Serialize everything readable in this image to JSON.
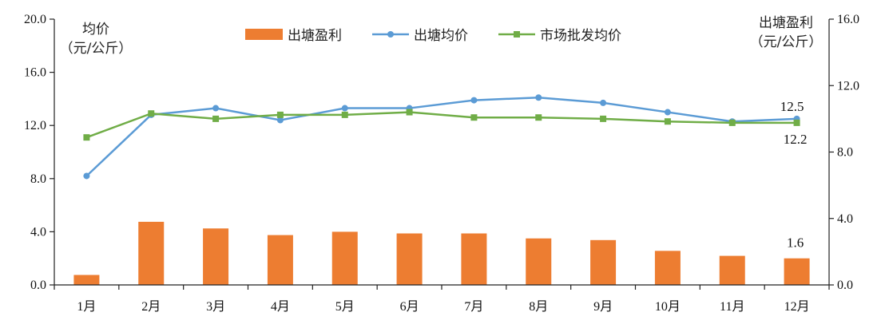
{
  "chart_data": {
    "type": "bar",
    "categories": [
      "1月",
      "2月",
      "3月",
      "4月",
      "5月",
      "6月",
      "7月",
      "8月",
      "9月",
      "10月",
      "11月",
      "12月"
    ],
    "y_left": {
      "unit_line1": "均价",
      "unit_line2": "（元/公斤）",
      "ylim": [
        0,
        20
      ],
      "ticks": [
        "0.0",
        "4.0",
        "8.0",
        "12.0",
        "16.0",
        "20.0"
      ]
    },
    "y_right": {
      "unit_line1": "出塘盈利",
      "unit_line2": "（元/公斤）",
      "ylim": [
        0,
        16
      ],
      "ticks": [
        "0.0",
        "4.0",
        "8.0",
        "12.0",
        "16.0"
      ]
    },
    "series": [
      {
        "name": "出塘盈利",
        "kind": "bar",
        "axis": "right",
        "color": "#ED7D31",
        "values": [
          0.6,
          3.8,
          3.4,
          3.0,
          3.2,
          3.1,
          3.1,
          2.8,
          2.7,
          2.05,
          1.75,
          1.6
        ]
      },
      {
        "name": "出塘均价",
        "kind": "line",
        "axis": "left",
        "color": "#5B9BD5",
        "marker": "circle",
        "values": [
          8.2,
          12.8,
          13.3,
          12.4,
          13.3,
          13.3,
          13.9,
          14.1,
          13.7,
          13.0,
          12.3,
          12.5
        ]
      },
      {
        "name": "市场批发均价",
        "kind": "line",
        "axis": "left",
        "color": "#70AD47",
        "marker": "square",
        "values": [
          11.1,
          12.9,
          12.5,
          12.8,
          12.8,
          13.0,
          12.6,
          12.6,
          12.5,
          12.3,
          12.2,
          12.2
        ]
      }
    ],
    "data_labels": {
      "avg_price_last": "12.5",
      "wholesale_last": "12.2",
      "profit_last": "1.6"
    },
    "legend": {
      "position": "top-center",
      "items": [
        "出塘盈利",
        "出塘均价",
        "市场批发均价"
      ]
    },
    "grid": false
  }
}
